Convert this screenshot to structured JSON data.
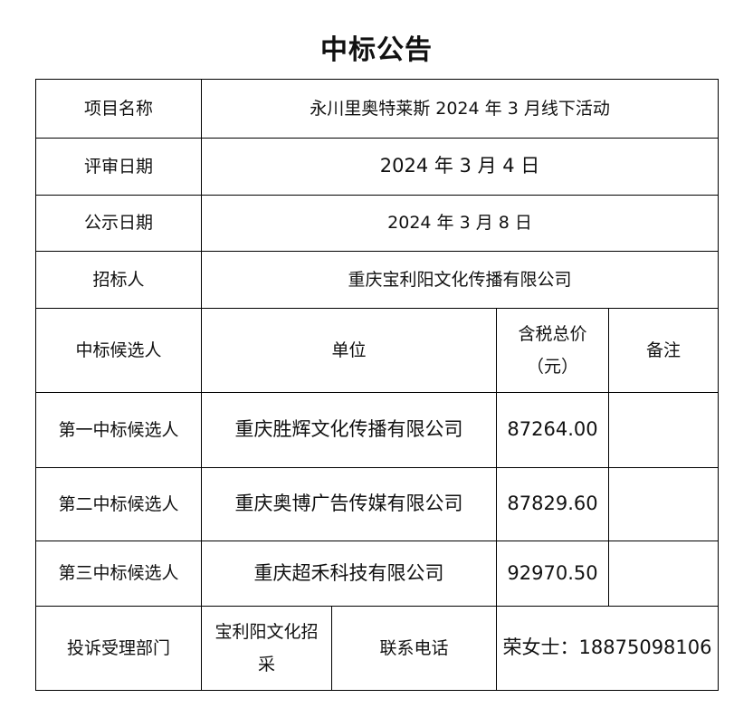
{
  "title": "中标公告",
  "rows": {
    "project": {
      "label": "项目名称",
      "value": "永川里奥特莱斯 2024 年 3 月线下活动"
    },
    "review_date": {
      "label": "评审日期",
      "value": "2024 年 3 月 4 日"
    },
    "publish_date": {
      "label": "公示日期",
      "value": "2024 年 3 月 8 日"
    },
    "tenderer": {
      "label": "招标人",
      "value": "重庆宝利阳文化传播有限公司"
    }
  },
  "candidates_header": {
    "label": "中标候选人",
    "unit": "单位",
    "price_line1": "含税总价",
    "price_line2": "（元）",
    "remark": "备注"
  },
  "candidates": [
    {
      "rank": "第一中标候选人",
      "unit": "重庆胜辉文化传播有限公司",
      "price": "87264.00",
      "remark": ""
    },
    {
      "rank": "第二中标候选人",
      "unit": "重庆奥博广告传媒有限公司",
      "price": "87829.60",
      "remark": ""
    },
    {
      "rank": "第三中标候选人",
      "unit": "重庆超禾科技有限公司",
      "price": "92970.50",
      "remark": ""
    }
  ],
  "complaint": {
    "label": "投诉受理部门",
    "dept_line1": "宝利阳文化招",
    "dept_line2": "采",
    "phone_label": "联系电话",
    "contact": "荣女士：18875098106"
  }
}
